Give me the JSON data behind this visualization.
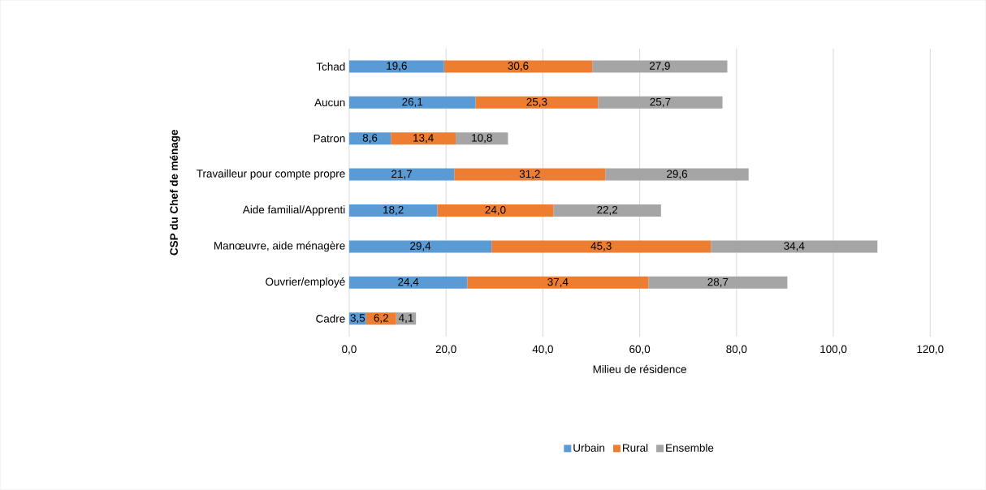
{
  "chart_data": {
    "type": "bar",
    "orientation": "horizontal",
    "stacked": true,
    "xlabel": "Milieu de résidence",
    "ylabel": "CSP du Chef de ménage",
    "categories": [
      "Tchad",
      "Aucun",
      "Patron",
      "Travailleur pour compte propre",
      "Aide familial/Apprenti",
      "Manœuvre, aide ménagère",
      "Ouvrier/employé",
      "Cadre"
    ],
    "series": [
      {
        "name": "Urbain",
        "color": "#5b9bd5",
        "values": [
          19.6,
          26.1,
          8.6,
          21.7,
          18.2,
          29.4,
          24.4,
          3.5
        ],
        "value_labels": [
          "19,6",
          "26,1",
          "8,6",
          "21,7",
          "18,2",
          "29,4",
          "24,4",
          "3,5"
        ]
      },
      {
        "name": "Rural",
        "color": "#ed7d31",
        "values": [
          30.6,
          25.3,
          13.4,
          31.2,
          24.0,
          45.3,
          37.4,
          6.2
        ],
        "value_labels": [
          "30,6",
          "25,3",
          "13,4",
          "31,2",
          "24,0",
          "45,3",
          "37,4",
          "6,2"
        ]
      },
      {
        "name": "Ensemble",
        "color": "#a5a5a5",
        "values": [
          27.9,
          25.7,
          10.8,
          29.6,
          22.2,
          34.4,
          28.7,
          4.1
        ],
        "value_labels": [
          "27,9",
          "25,7",
          "10,8",
          "29,6",
          "22,2",
          "34,4",
          "28,7",
          "4,1"
        ]
      }
    ],
    "xlim": [
      0,
      120
    ],
    "xticks": [
      {
        "value": 0,
        "label": "0,0"
      },
      {
        "value": 20,
        "label": "20,0"
      },
      {
        "value": 40,
        "label": "40,0"
      },
      {
        "value": 60,
        "label": "60,0"
      },
      {
        "value": 80,
        "label": "80,0"
      },
      {
        "value": 100,
        "label": "100,0"
      },
      {
        "value": 120,
        "label": "120,0"
      }
    ],
    "grid": "x",
    "legend": "bottom"
  }
}
